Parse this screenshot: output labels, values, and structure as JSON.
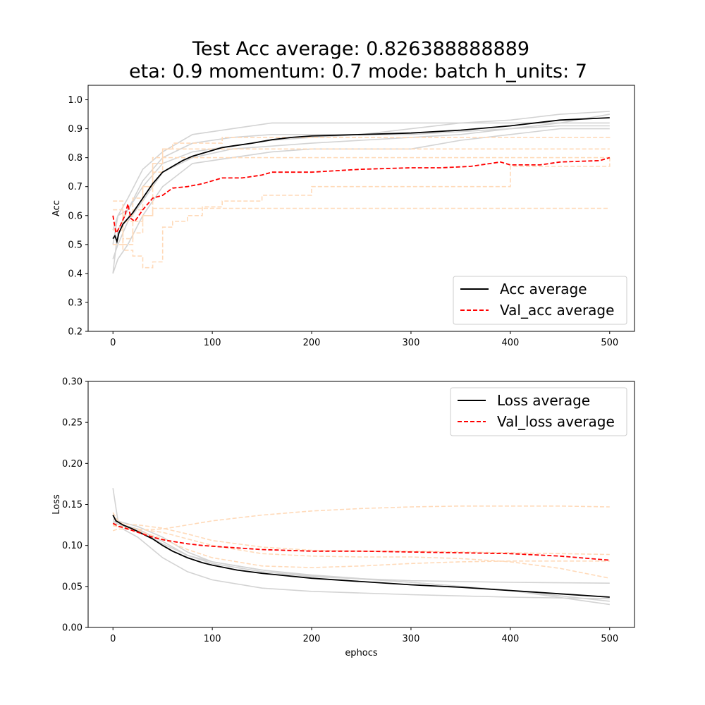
{
  "figure": {
    "title_line1": "Test Acc average: 0.826388888889",
    "title_line2": "eta: 0.9 momentum: 0.7 mode: batch h_units: 7"
  },
  "colors": {
    "average": "#000000",
    "val_average": "#ff0000",
    "run_train": "#d3d3d3",
    "run_val": "#ffdab9"
  },
  "chart_data": [
    {
      "type": "line",
      "title": "",
      "xlabel": "",
      "ylabel": "Acc",
      "xlim": [
        -25,
        525
      ],
      "ylim": [
        0.2,
        1.05
      ],
      "xticks": [
        "0",
        "100",
        "200",
        "300",
        "400",
        "500"
      ],
      "yticks": [
        "0.2",
        "0.3",
        "0.4",
        "0.5",
        "0.6",
        "0.7",
        "0.8",
        "0.9",
        "1.0"
      ],
      "legend_position": "lower-right",
      "series": [
        {
          "name": "Acc average",
          "style": "solid",
          "color": "#000000",
          "x": [
            0,
            2,
            4,
            6,
            10,
            15,
            20,
            30,
            40,
            50,
            60,
            70,
            80,
            90,
            100,
            110,
            120,
            140,
            160,
            180,
            200,
            250,
            300,
            350,
            400,
            450,
            500
          ],
          "y": [
            0.52,
            0.53,
            0.51,
            0.54,
            0.57,
            0.59,
            0.61,
            0.66,
            0.71,
            0.75,
            0.77,
            0.79,
            0.805,
            0.815,
            0.825,
            0.835,
            0.84,
            0.85,
            0.862,
            0.87,
            0.875,
            0.88,
            0.885,
            0.895,
            0.91,
            0.93,
            0.938
          ]
        },
        {
          "name": "Val_acc average",
          "style": "dashed",
          "color": "#ff0000",
          "x": [
            0,
            3,
            5,
            8,
            12,
            15,
            18,
            22,
            30,
            40,
            50,
            60,
            75,
            90,
            100,
            110,
            130,
            150,
            160,
            170,
            200,
            225,
            250,
            300,
            330,
            360,
            390,
            400,
            430,
            450,
            490,
            500
          ],
          "y": [
            0.6,
            0.54,
            0.55,
            0.57,
            0.6,
            0.64,
            0.59,
            0.58,
            0.62,
            0.66,
            0.67,
            0.695,
            0.7,
            0.71,
            0.72,
            0.73,
            0.73,
            0.74,
            0.75,
            0.75,
            0.75,
            0.755,
            0.76,
            0.765,
            0.765,
            0.77,
            0.785,
            0.775,
            0.775,
            0.785,
            0.79,
            0.8
          ]
        },
        {
          "style": "solid",
          "color": "#d3d3d3",
          "x": [
            0,
            5,
            15,
            30,
            50,
            80,
            120,
            160,
            200,
            250,
            300,
            350,
            400,
            450,
            500
          ],
          "y": [
            0.4,
            0.55,
            0.62,
            0.72,
            0.8,
            0.85,
            0.87,
            0.88,
            0.88,
            0.88,
            0.9,
            0.92,
            0.93,
            0.95,
            0.96
          ]
        },
        {
          "style": "solid",
          "color": "#d3d3d3",
          "x": [
            0,
            5,
            15,
            30,
            50,
            80,
            120,
            160,
            200,
            250,
            300,
            350,
            400,
            450,
            500
          ],
          "y": [
            0.5,
            0.6,
            0.66,
            0.76,
            0.82,
            0.88,
            0.9,
            0.92,
            0.92,
            0.92,
            0.92,
            0.92,
            0.92,
            0.92,
            0.92
          ]
        },
        {
          "style": "solid",
          "color": "#d3d3d3",
          "x": [
            0,
            5,
            15,
            30,
            50,
            80,
            120,
            160,
            200,
            250,
            300,
            350,
            400,
            450,
            500
          ],
          "y": [
            0.45,
            0.5,
            0.58,
            0.65,
            0.75,
            0.8,
            0.83,
            0.84,
            0.85,
            0.86,
            0.87,
            0.88,
            0.9,
            0.92,
            0.95
          ]
        },
        {
          "style": "solid",
          "color": "#d3d3d3",
          "x": [
            0,
            5,
            15,
            30,
            50,
            80,
            120,
            160,
            200,
            250,
            300,
            350,
            400,
            450,
            500
          ],
          "y": [
            0.55,
            0.6,
            0.62,
            0.7,
            0.78,
            0.82,
            0.84,
            0.86,
            0.87,
            0.88,
            0.88,
            0.89,
            0.9,
            0.91,
            0.91
          ]
        },
        {
          "style": "solid",
          "color": "#d3d3d3",
          "x": [
            0,
            5,
            15,
            30,
            50,
            80,
            120,
            160,
            200,
            250,
            300,
            350,
            400,
            450,
            500
          ],
          "y": [
            0.4,
            0.45,
            0.5,
            0.6,
            0.7,
            0.78,
            0.8,
            0.82,
            0.83,
            0.83,
            0.83,
            0.86,
            0.88,
            0.9,
            0.9
          ]
        },
        {
          "style": "dashed",
          "color": "#ffdab9",
          "x": [
            0,
            10,
            20,
            30,
            40,
            50,
            60,
            75,
            90,
            110,
            150,
            200,
            300,
            400,
            500
          ],
          "y": [
            0.5,
            0.52,
            0.58,
            0.6,
            0.625,
            0.625,
            0.625,
            0.625,
            0.625,
            0.625,
            0.625,
            0.625,
            0.625,
            0.625,
            0.625
          ]
        },
        {
          "style": "dashed",
          "color": "#ffdab9",
          "x": [
            0,
            10,
            20,
            30,
            40,
            50,
            60,
            75,
            90,
            110,
            150,
            200,
            300,
            400,
            500
          ],
          "y": [
            0.62,
            0.5,
            0.54,
            0.6,
            0.75,
            0.83,
            0.85,
            0.85,
            0.85,
            0.87,
            0.87,
            0.87,
            0.87,
            0.87,
            0.875
          ]
        },
        {
          "style": "dashed",
          "color": "#ffdab9",
          "x": [
            0,
            10,
            20,
            30,
            40,
            50,
            60,
            75,
            90,
            110,
            150,
            200,
            300,
            400,
            500
          ],
          "y": [
            0.55,
            0.48,
            0.46,
            0.42,
            0.44,
            0.56,
            0.58,
            0.6,
            0.63,
            0.65,
            0.67,
            0.7,
            0.7,
            0.77,
            0.8
          ]
        },
        {
          "style": "dashed",
          "color": "#ffdab9",
          "x": [
            0,
            10,
            20,
            30,
            40,
            50,
            60,
            75,
            90,
            110,
            150,
            200,
            300,
            400,
            500
          ],
          "y": [
            0.65,
            0.58,
            0.62,
            0.7,
            0.8,
            0.8,
            0.8,
            0.8,
            0.8,
            0.8,
            0.8,
            0.8,
            0.8,
            0.8,
            0.8
          ]
        },
        {
          "style": "dashed",
          "color": "#ffdab9",
          "x": [
            0,
            10,
            20,
            30,
            40,
            50,
            60,
            75,
            90,
            110,
            150,
            200,
            300,
            400,
            500
          ],
          "y": [
            0.5,
            0.6,
            0.66,
            0.7,
            0.78,
            0.83,
            0.83,
            0.83,
            0.83,
            0.83,
            0.83,
            0.83,
            0.83,
            0.83,
            0.83
          ]
        }
      ]
    },
    {
      "type": "line",
      "title": "",
      "xlabel": "ephocs",
      "ylabel": "Loss",
      "xlim": [
        -25,
        525
      ],
      "ylim": [
        0.0,
        0.3
      ],
      "xticks": [
        "0",
        "100",
        "200",
        "300",
        "400",
        "500"
      ],
      "yticks": [
        "0.00",
        "0.05",
        "0.10",
        "0.15",
        "0.20",
        "0.25",
        "0.30"
      ],
      "legend_position": "upper-right",
      "series": [
        {
          "name": "Loss average",
          "style": "solid",
          "color": "#000000",
          "x": [
            0,
            3,
            6,
            10,
            20,
            30,
            40,
            50,
            60,
            75,
            90,
            100,
            125,
            150,
            200,
            250,
            300,
            350,
            400,
            450,
            500
          ],
          "y": [
            0.137,
            0.13,
            0.128,
            0.125,
            0.12,
            0.114,
            0.108,
            0.1,
            0.093,
            0.085,
            0.079,
            0.076,
            0.07,
            0.066,
            0.06,
            0.056,
            0.052,
            0.049,
            0.045,
            0.041,
            0.037
          ]
        },
        {
          "name": "Val_loss average",
          "style": "dashed",
          "color": "#ff0000",
          "x": [
            0,
            3,
            6,
            10,
            20,
            30,
            40,
            50,
            60,
            75,
            90,
            100,
            125,
            150,
            200,
            250,
            300,
            350,
            400,
            450,
            500
          ],
          "y": [
            0.127,
            0.125,
            0.123,
            0.122,
            0.118,
            0.114,
            0.11,
            0.107,
            0.105,
            0.102,
            0.1,
            0.099,
            0.097,
            0.095,
            0.093,
            0.093,
            0.092,
            0.091,
            0.09,
            0.087,
            0.082
          ]
        },
        {
          "style": "solid",
          "color": "#d3d3d3",
          "x": [
            0,
            5,
            10,
            25,
            50,
            75,
            100,
            150,
            200,
            300,
            400,
            500
          ],
          "y": [
            0.17,
            0.13,
            0.12,
            0.11,
            0.085,
            0.068,
            0.058,
            0.048,
            0.044,
            0.04,
            0.037,
            0.035
          ]
        },
        {
          "style": "solid",
          "color": "#d3d3d3",
          "x": [
            0,
            5,
            10,
            25,
            50,
            75,
            100,
            150,
            200,
            300,
            400,
            500
          ],
          "y": [
            0.13,
            0.128,
            0.125,
            0.12,
            0.105,
            0.088,
            0.078,
            0.068,
            0.062,
            0.057,
            0.055,
            0.054
          ]
        },
        {
          "style": "solid",
          "color": "#d3d3d3",
          "x": [
            0,
            5,
            10,
            25,
            50,
            75,
            100,
            150,
            200,
            300,
            400,
            500
          ],
          "y": [
            0.132,
            0.13,
            0.128,
            0.123,
            0.11,
            0.092,
            0.08,
            0.07,
            0.063,
            0.055,
            0.045,
            0.028
          ]
        },
        {
          "style": "solid",
          "color": "#d3d3d3",
          "x": [
            0,
            5,
            10,
            25,
            50,
            75,
            100,
            150,
            200,
            300,
            400,
            500
          ],
          "y": [
            0.128,
            0.126,
            0.124,
            0.118,
            0.102,
            0.088,
            0.08,
            0.07,
            0.064,
            0.055,
            0.045,
            0.032
          ]
        },
        {
          "style": "dashed",
          "color": "#ffdab9",
          "x": [
            0,
            5,
            10,
            25,
            50,
            75,
            100,
            150,
            200,
            250,
            300,
            350,
            400,
            450,
            500
          ],
          "y": [
            0.118,
            0.12,
            0.12,
            0.119,
            0.12,
            0.125,
            0.13,
            0.137,
            0.142,
            0.145,
            0.147,
            0.148,
            0.148,
            0.148,
            0.147
          ]
        },
        {
          "style": "dashed",
          "color": "#ffdab9",
          "x": [
            0,
            5,
            10,
            25,
            50,
            75,
            100,
            150,
            200,
            250,
            300,
            350,
            400,
            450,
            500
          ],
          "y": [
            0.14,
            0.13,
            0.126,
            0.125,
            0.121,
            0.114,
            0.106,
            0.098,
            0.094,
            0.093,
            0.093,
            0.092,
            0.091,
            0.09,
            0.089
          ]
        },
        {
          "style": "dashed",
          "color": "#ffdab9",
          "x": [
            0,
            5,
            10,
            25,
            50,
            75,
            100,
            150,
            200,
            250,
            300,
            350,
            400,
            450,
            500
          ],
          "y": [
            0.125,
            0.124,
            0.123,
            0.118,
            0.108,
            0.095,
            0.085,
            0.075,
            0.073,
            0.075,
            0.078,
            0.08,
            0.081,
            0.081,
            0.081
          ]
        },
        {
          "style": "dashed",
          "color": "#ffdab9",
          "x": [
            0,
            5,
            10,
            25,
            50,
            75,
            100,
            150,
            200,
            250,
            300,
            350,
            400,
            450,
            500
          ],
          "y": [
            0.124,
            0.123,
            0.122,
            0.12,
            0.116,
            0.108,
            0.1,
            0.09,
            0.087,
            0.086,
            0.086,
            0.084,
            0.08,
            0.072,
            0.06
          ]
        }
      ]
    }
  ]
}
